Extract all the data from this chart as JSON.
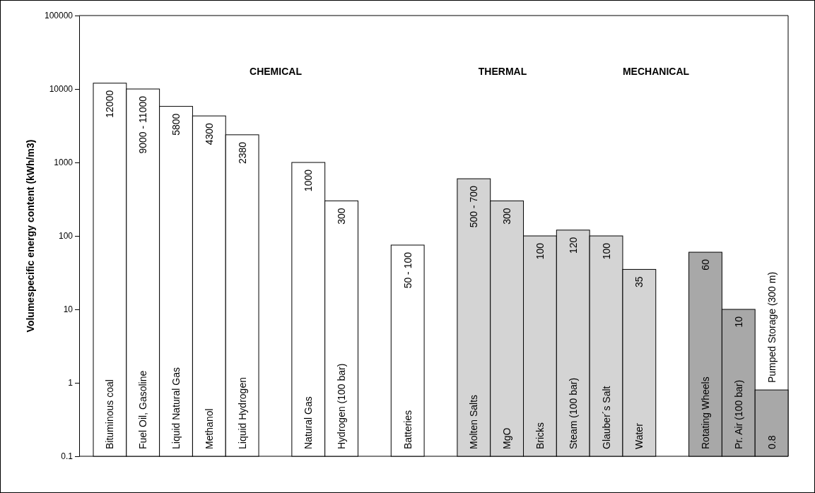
{
  "chart_data": {
    "type": "bar",
    "ylabel": "Volumespecific energy content (kWh/m3)",
    "categories": [
      "Bituminous coal",
      "Fuel Oil, Gasoline",
      "Liquid Natural Gas",
      "Methanol",
      "Liquid Hydrogen",
      null,
      "Natural Gas",
      "Hydrogen (100 bar)",
      null,
      "Batteries",
      null,
      "Molten Salts",
      "MgO",
      "Bricks",
      "Steam (100 bar)",
      "Glauber´s Salt",
      "Water",
      null,
      "Rotating Wheels",
      "Pr. Air (100 bar)",
      "Pumped Storage (300 m)"
    ],
    "values": [
      12000,
      10000,
      5800,
      4300,
      2380,
      null,
      1000,
      300,
      null,
      75,
      null,
      600,
      300,
      100,
      120,
      100,
      35,
      null,
      60,
      10,
      0.8
    ],
    "value_labels": [
      "12000",
      null,
      "5800",
      "4300",
      "2380",
      null,
      "1000",
      "300",
      null,
      null,
      null,
      null,
      "300",
      "100",
      "120",
      "100",
      "35",
      null,
      "60",
      "10",
      "0.8"
    ],
    "colors": [
      "#ffffff",
      "#ffffff",
      "#ffffff",
      "#ffffff",
      "#ffffff",
      null,
      "#ffffff",
      "#ffffff",
      null,
      "#ffffff",
      null,
      "#d4d4d4",
      "#d4d4d4",
      "#d4d4d4",
      "#d4d4d4",
      "#d4d4d4",
      "#d4d4d4",
      null,
      "#a8a8a8",
      "#a8a8a8",
      "#a8a8a8"
    ],
    "log": true,
    "ylim": [
      0.1,
      100000
    ],
    "yticks": [
      0.1,
      1,
      10,
      100,
      1000,
      10000,
      100000
    ],
    "grid": false,
    "annotations": [
      "CHEMICAL",
      "THERMAL",
      "MECHANICAL",
      {
        "text": "9000 - 11000",
        "x": "Fuel Oil, Gasoline",
        "y": 10000
      },
      {
        "text": "50 - 100",
        "x": "Batteries",
        "y": 75
      },
      {
        "text": "500 - 700",
        "x": "Molten Salts",
        "y": 600
      }
    ]
  }
}
